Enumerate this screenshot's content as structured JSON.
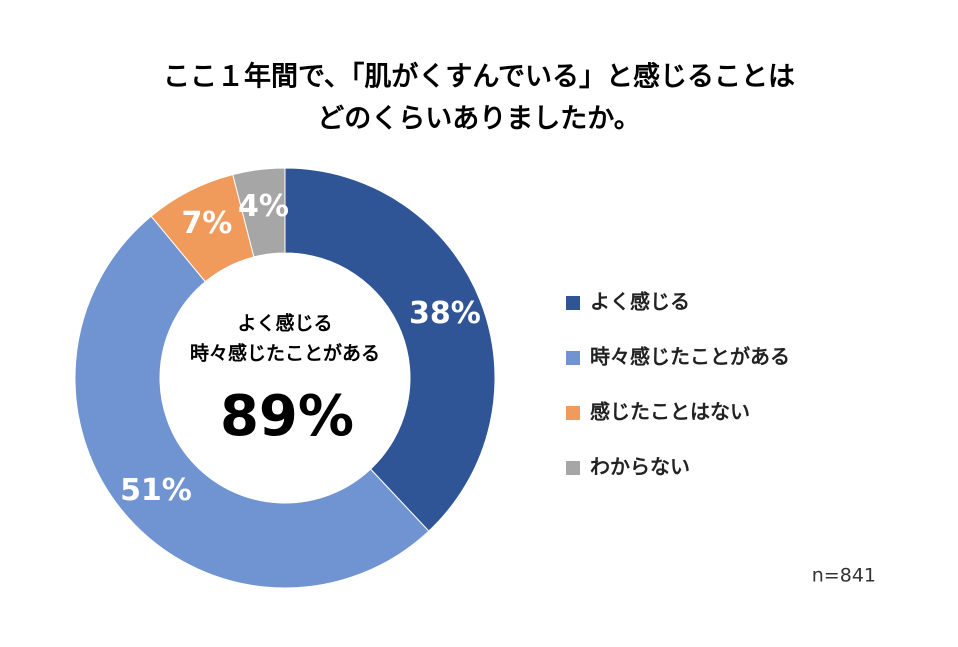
{
  "chart_data": {
    "type": "donut",
    "title": [
      "ここ１年間で、「肌がくすんでいる」と感じることは",
      "どのくらいありましたか。"
    ],
    "categories": [
      "よく感じる",
      "時々感じたことがある",
      "感じたことはない",
      "わからない"
    ],
    "values": [
      38,
      51,
      7,
      4
    ],
    "value_labels": [
      "38%",
      "51%",
      "7%",
      "4%"
    ],
    "colors": [
      "#2f5597",
      "#7094d2",
      "#f09a5c",
      "#a6a6a6"
    ],
    "center_text": {
      "lines": [
        "よく感じる",
        "時々感じたことがある"
      ],
      "value": 89,
      "value_label": "89%"
    },
    "note": "n=841",
    "legend": "right"
  }
}
